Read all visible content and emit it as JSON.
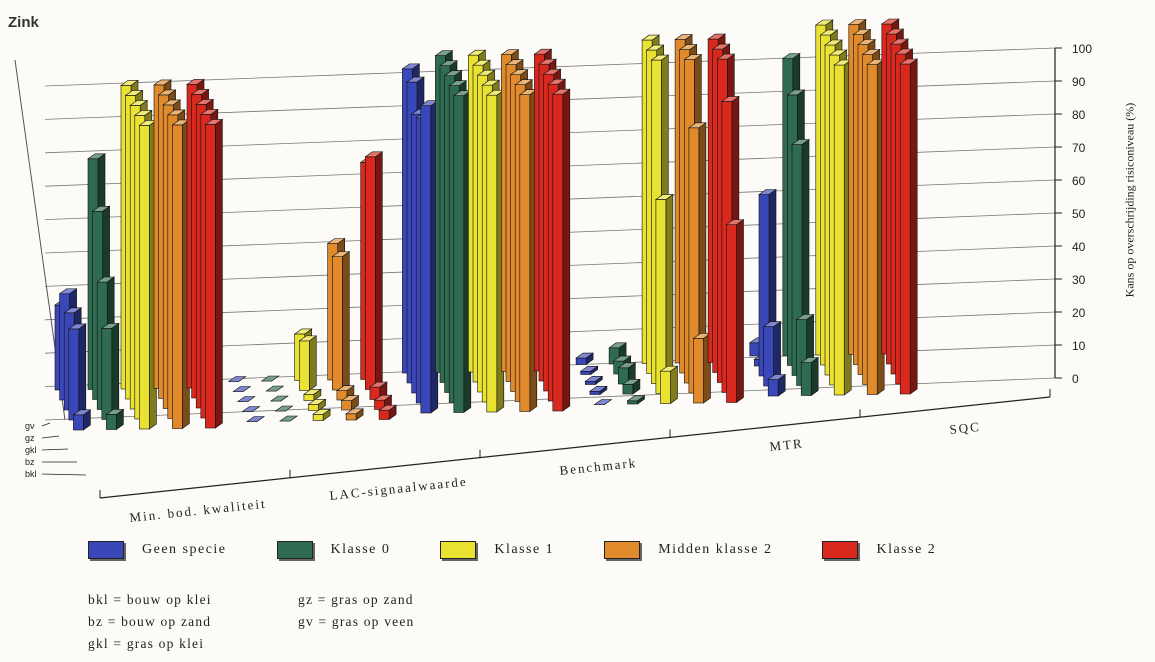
{
  "chart_data": {
    "type": "bar",
    "title": "Zink",
    "ylabel": "Kans op overschrijding risiconiveau (%)",
    "ylim": [
      0,
      100
    ],
    "yticks": [
      "0",
      "10",
      "20",
      "30",
      "40",
      "50",
      "60",
      "70",
      "80",
      "90",
      "100"
    ],
    "groups": [
      "Min. bod. kwaliteit",
      "LAC-signaalwaarde",
      "Benchmark",
      "MTR",
      "SQC"
    ],
    "rows": [
      "gv",
      "gz",
      "gkl",
      "bz",
      "bkl"
    ],
    "series": [
      {
        "name": "Geen specie",
        "color": "#3a47b8",
        "values": [
          [
            28,
            35,
            32,
            30,
            5
          ],
          [
            0,
            0,
            0,
            0,
            0
          ],
          [
            96,
            95,
            88,
            90,
            97
          ],
          [
            2,
            1,
            1,
            1,
            0
          ],
          [
            4,
            2,
            55,
            18,
            5
          ]
        ]
      },
      {
        "name": "Klasse 0",
        "color": "#2f6b50",
        "values": [
          [
            76,
            62,
            42,
            30,
            5
          ],
          [
            0,
            0,
            0,
            0,
            0
          ],
          [
            100,
            100,
            100,
            100,
            100
          ],
          [
            5,
            4,
            5,
            3,
            1
          ],
          [
            90,
            82,
            70,
            20,
            10
          ]
        ]
      },
      {
        "name": "Klasse 1",
        "color": "#e9e231",
        "values": [
          [
            100,
            100,
            100,
            100,
            100
          ],
          [
            15,
            16,
            2,
            2,
            2
          ],
          [
            100,
            100,
            100,
            100,
            100
          ],
          [
            100,
            100,
            100,
            60,
            10
          ],
          [
            100,
            100,
            100,
            100,
            100
          ]
        ]
      },
      {
        "name": "Midden klasse 2",
        "color": "#e08a2c",
        "values": [
          [
            100,
            100,
            100,
            100,
            100
          ],
          [
            44,
            43,
            3,
            3,
            2
          ],
          [
            100,
            100,
            100,
            100,
            100
          ],
          [
            100,
            100,
            100,
            82,
            20
          ],
          [
            100,
            100,
            100,
            100,
            100
          ]
        ]
      },
      {
        "name": "Klasse 2",
        "color": "#d9291f",
        "values": [
          [
            100,
            100,
            100,
            100,
            100
          ],
          [
            70,
            75,
            4,
            3,
            3
          ],
          [
            100,
            100,
            100,
            100,
            100
          ],
          [
            100,
            100,
            100,
            90,
            55
          ],
          [
            100,
            100,
            100,
            100,
            100
          ]
        ]
      }
    ],
    "grid": true,
    "legend": "bottom"
  },
  "abbreviations": [
    "bkl = bouw op klei",
    "gz = gras op zand",
    "bz = bouw op zand",
    "gv = gras op veen",
    "gkl = gras op klei"
  ]
}
